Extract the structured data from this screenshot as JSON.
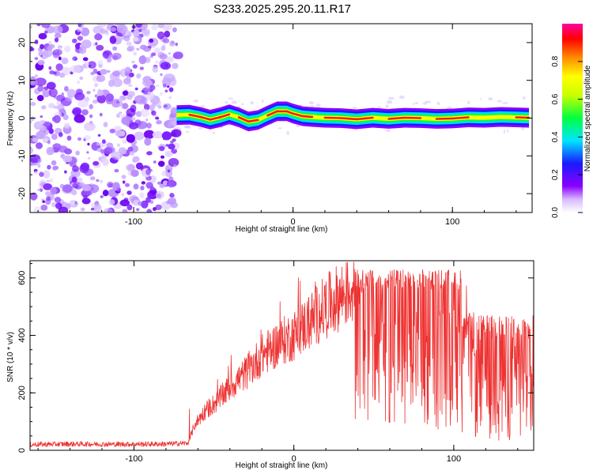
{
  "title": "S233.2025.295.20.11.R17",
  "chart_data": [
    {
      "type": "heatmap",
      "title": "S233.2025.295.20.11.R17",
      "xlabel": "Height of straight line (km)",
      "ylabel": "Frequency (Hz)",
      "xlim": [
        -165,
        150
      ],
      "ylim": [
        -25,
        25
      ],
      "x_ticks": [
        "-100",
        "0",
        "100"
      ],
      "y_ticks": [
        "-20",
        "-10",
        "0",
        "10",
        "20"
      ],
      "colorbar": {
        "label": "Normalized spectral amplitude",
        "range": [
          0,
          1
        ],
        "ticks": [
          "0.0",
          "0.2",
          "0.4",
          "0.6",
          "0.8"
        ],
        "colormap": [
          "#ffffff",
          "#8a00ff",
          "#1a1aff",
          "#00e5ff",
          "#00ff00",
          "#c8ff00",
          "#ffff00",
          "#ff8c00",
          "#ff0000",
          "#ff00a0"
        ]
      },
      "noise_region_x": [
        -165,
        -72
      ],
      "ridge": {
        "x": [
          -73,
          -65,
          -58,
          -52,
          -46,
          -40,
          -34,
          -28,
          -22,
          -16,
          -10,
          -4,
          0,
          6,
          12,
          20,
          30,
          40,
          50,
          60,
          70,
          80,
          90,
          100,
          110,
          120,
          130,
          140,
          148
        ],
        "freq": [
          0.8,
          0.9,
          0.3,
          -0.4,
          0.2,
          1.0,
          0.2,
          -0.9,
          -0.5,
          0.7,
          1.8,
          1.8,
          1.2,
          0.5,
          0.3,
          0.1,
          0.0,
          -0.3,
          0.1,
          -0.2,
          0.1,
          0.0,
          -0.2,
          -0.1,
          0.2,
          0.1,
          0.3,
          0.2,
          0.1
        ]
      }
    },
    {
      "type": "line",
      "xlabel": "Height of straight line (km)",
      "ylabel": "SNR (10 * v/v)",
      "xlim": [
        -165,
        150
      ],
      "ylim": [
        0,
        660
      ],
      "x_ticks": [
        "-100",
        "0",
        "100"
      ],
      "y_ticks": [
        "0",
        "200",
        "400",
        "600"
      ],
      "color": "#ee3333",
      "x": [
        -165,
        -140,
        -110,
        -80,
        -66,
        -62,
        -55,
        -48,
        -40,
        -30,
        -20,
        -10,
        0,
        10,
        20,
        30,
        35,
        40,
        50,
        60,
        70,
        80,
        90,
        100,
        105,
        110,
        120,
        130,
        140,
        150
      ],
      "y": [
        20,
        22,
        21,
        22,
        25,
        90,
        140,
        170,
        220,
        270,
        330,
        370,
        400,
        450,
        500,
        540,
        555,
        560,
        480,
        470,
        470,
        460,
        470,
        480,
        560,
        380,
        340,
        320,
        280,
        260
      ]
    }
  ]
}
